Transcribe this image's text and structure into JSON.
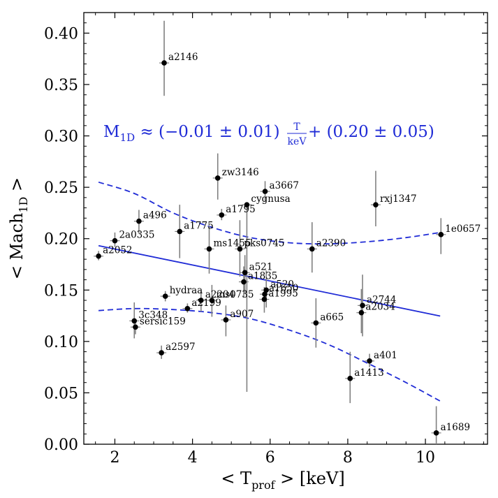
{
  "chart_data": {
    "type": "scatter",
    "xlabel": "< T",
    "xlabel_sub": "prof",
    "xlabel_tail": " > [keV]",
    "ylabel": "< Mach",
    "ylabel_sub": "1D",
    "ylabel_tail": " >",
    "xlim": [
      1.2,
      11.6
    ],
    "ylim": [
      0.0,
      0.42
    ],
    "xticks": [
      "2",
      "4",
      "6",
      "8",
      "10"
    ],
    "yticks": [
      "0.00",
      "0.05",
      "0.10",
      "0.15",
      "0.20",
      "0.25",
      "0.30",
      "0.35",
      "0.40"
    ],
    "equation": {
      "lhs": "M",
      "lhs_sub": "1D",
      "approx": " ≈ (−0.01 ± 0.01) ",
      "frac_num": "T",
      "frac_den": "keV",
      "rhs": " + (0.20 ± 0.05)"
    },
    "colors": {
      "fit": "#1f2bd6",
      "points": "#000000",
      "errorbars": "#808080"
    },
    "fit_line": {
      "slope": -0.00778,
      "intercept": 0.2055,
      "x_range": [
        1.58,
        10.38
      ]
    },
    "confidence_band": {
      "upper": [
        [
          1.58,
          0.255
        ],
        [
          2.5,
          0.244
        ],
        [
          3.5,
          0.225
        ],
        [
          4.5,
          0.211
        ],
        [
          5.5,
          0.201
        ],
        [
          6.5,
          0.196
        ],
        [
          7.5,
          0.195
        ],
        [
          8.5,
          0.197
        ],
        [
          9.5,
          0.201
        ],
        [
          10.38,
          0.206
        ]
      ],
      "lower": [
        [
          1.58,
          0.13
        ],
        [
          2.5,
          0.132
        ],
        [
          3.5,
          0.131
        ],
        [
          4.5,
          0.128
        ],
        [
          5.5,
          0.122
        ],
        [
          6.5,
          0.111
        ],
        [
          7.5,
          0.097
        ],
        [
          8.5,
          0.079
        ],
        [
          9.5,
          0.06
        ],
        [
          10.38,
          0.042
        ]
      ]
    },
    "points": [
      {
        "name": "a2146",
        "x": 3.27,
        "y": 0.371,
        "ylo": 0.339,
        "yhi": 0.412
      },
      {
        "name": "zw3146",
        "x": 4.65,
        "y": 0.259,
        "ylo": 0.238,
        "yhi": 0.283
      },
      {
        "name": "a3667",
        "x": 5.87,
        "y": 0.246,
        "ylo": 0.236,
        "yhi": 0.256
      },
      {
        "name": "cygnusa",
        "x": 5.4,
        "y": 0.233,
        "ylo": 0.051,
        "yhi": 0.235
      },
      {
        "name": "rxj1347",
        "x": 8.72,
        "y": 0.233,
        "ylo": 0.212,
        "yhi": 0.266
      },
      {
        "name": "a1795",
        "x": 4.75,
        "y": 0.223,
        "ylo": 0.218,
        "yhi": 0.229
      },
      {
        "name": "a496",
        "x": 2.62,
        "y": 0.217,
        "ylo": 0.205,
        "yhi": 0.228
      },
      {
        "name": "a1775",
        "x": 3.67,
        "y": 0.207,
        "ylo": 0.181,
        "yhi": 0.233
      },
      {
        "name": "1e0657",
        "x": 10.4,
        "y": 0.204,
        "ylo": 0.185,
        "yhi": 0.22
      },
      {
        "name": "2a0335",
        "x": 2.0,
        "y": 0.198,
        "ylo": 0.192,
        "yhi": 0.206
      },
      {
        "name": "ms1455",
        "x": 4.43,
        "y": 0.19,
        "ylo": 0.166,
        "yhi": 0.213
      },
      {
        "name": "pks0745",
        "x": 5.22,
        "y": 0.19,
        "ylo": 0.163,
        "yhi": 0.218
      },
      {
        "name": "a2390",
        "x": 7.08,
        "y": 0.19,
        "ylo": 0.167,
        "yhi": 0.216
      },
      {
        "name": "a2052",
        "x": 1.58,
        "y": 0.183,
        "ylo": 0.179,
        "yhi": 0.188
      },
      {
        "name": "a521",
        "x": 5.35,
        "y": 0.167,
        "ylo": 0.147,
        "yhi": 0.184
      },
      {
        "name": "a1835",
        "x": 5.32,
        "y": 0.158,
        "ylo": 0.143,
        "yhi": 0.173
      },
      {
        "name": "a520",
        "x": 5.9,
        "y": 0.15,
        "ylo": 0.133,
        "yhi": 0.169
      },
      {
        "name": "a1650",
        "x": 5.86,
        "y": 0.146,
        "ylo": 0.141,
        "yhi": 0.151
      },
      {
        "name": "hydraa",
        "x": 3.3,
        "y": 0.144,
        "ylo": 0.139,
        "yhi": 0.149
      },
      {
        "name": "a1995",
        "x": 5.85,
        "y": 0.141,
        "ylo": 0.128,
        "yhi": 0.153
      },
      {
        "name": "ms0735",
        "x": 4.5,
        "y": 0.14,
        "ylo": 0.124,
        "yhi": 0.155
      },
      {
        "name": "a2204",
        "x": 4.22,
        "y": 0.14,
        "ylo": 0.129,
        "yhi": 0.149
      },
      {
        "name": "a2199",
        "x": 3.87,
        "y": 0.132,
        "ylo": 0.128,
        "yhi": 0.137
      },
      {
        "name": "a2744",
        "x": 8.38,
        "y": 0.135,
        "ylo": 0.105,
        "yhi": 0.165
      },
      {
        "name": "a2034",
        "x": 8.35,
        "y": 0.128,
        "ylo": 0.108,
        "yhi": 0.151
      },
      {
        "name": "a907",
        "x": 4.86,
        "y": 0.121,
        "ylo": 0.105,
        "yhi": 0.135
      },
      {
        "name": "3c348",
        "x": 2.5,
        "y": 0.12,
        "ylo": 0.103,
        "yhi": 0.138
      },
      {
        "name": "a665",
        "x": 7.18,
        "y": 0.118,
        "ylo": 0.094,
        "yhi": 0.142
      },
      {
        "name": "sersic159",
        "x": 2.53,
        "y": 0.114,
        "ylo": 0.107,
        "yhi": 0.121
      },
      {
        "name": "a2597",
        "x": 3.2,
        "y": 0.089,
        "ylo": 0.083,
        "yhi": 0.096
      },
      {
        "name": "a401",
        "x": 8.56,
        "y": 0.081,
        "ylo": 0.075,
        "yhi": 0.088
      },
      {
        "name": "a1413",
        "x": 8.06,
        "y": 0.064,
        "ylo": 0.04,
        "yhi": 0.09
      },
      {
        "name": "a1689",
        "x": 10.28,
        "y": 0.011,
        "ylo": 0.0,
        "yhi": 0.037
      }
    ]
  }
}
